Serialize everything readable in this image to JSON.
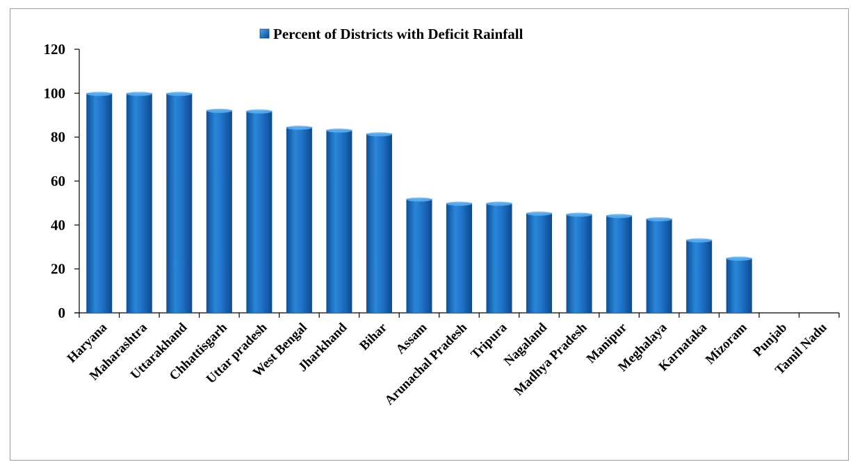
{
  "chart_data": {
    "type": "bar",
    "categories": [
      "Haryana",
      "Maharashtra",
      "Uttarakhand",
      "Chhattisgarh",
      "Uttar pradesh",
      "West Bengal",
      "Jharkhand",
      "Bihar",
      "Assam",
      "Arunachal Pradesh",
      "Tripura",
      "Nagaland",
      "Madhya Pradesh",
      "Manipur",
      "Meghalaya",
      "Karnataka",
      "Mizoram",
      "Punjab",
      "Tamil Nadu"
    ],
    "series": [
      {
        "name": "Percent of Districts with Deficit Rainfall",
        "values": [
          100,
          100,
          100,
          92.3,
          92,
          84.6,
          83.3,
          81.6,
          51.9,
          50,
          50,
          45.5,
          45,
          44.4,
          42.9,
          33.3,
          25,
          0,
          0
        ]
      }
    ],
    "title": "",
    "xlabel": "",
    "ylabel": "",
    "ylim": [
      0,
      120
    ],
    "yticks": [
      0,
      20,
      40,
      60,
      80,
      100,
      120
    ],
    "grid": false,
    "legend_position": "top-center",
    "bar_color": "#1f6fc0"
  }
}
